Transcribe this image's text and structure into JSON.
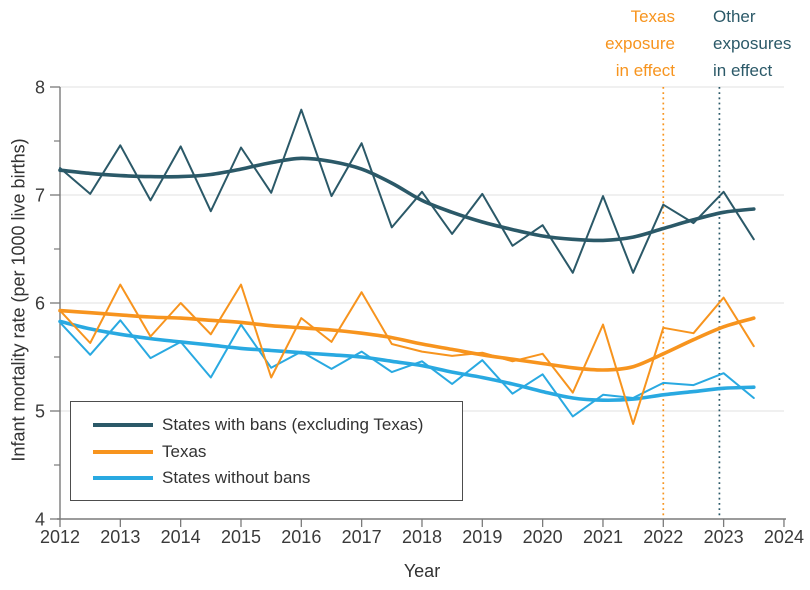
{
  "colors": {
    "grid": "#E6E6E6",
    "axis": "#7A7A7A",
    "text": "#3A3A3A",
    "legend_border": "#4D4D4D"
  },
  "chart_data": {
    "type": "line",
    "title": "",
    "xlabel": "Year",
    "ylabel": "Infant mortality rate (per 1000 live births)",
    "xlim": [
      2012,
      2024
    ],
    "ylim": [
      4,
      8
    ],
    "x_ticks": [
      2012,
      2013,
      2014,
      2015,
      2016,
      2017,
      2018,
      2019,
      2020,
      2021,
      2022,
      2023,
      2024
    ],
    "y_ticks": [
      4,
      5,
      6,
      7,
      8
    ],
    "y_minor_ticks": [
      4.5,
      5.5,
      6.5,
      7.5
    ],
    "gridlines": [
      5,
      6,
      7,
      8
    ],
    "legend_position": "lower-left",
    "x": [
      2012,
      2012.5,
      2013,
      2013.5,
      2014,
      2014.5,
      2015,
      2015.5,
      2016,
      2016.5,
      2017,
      2017.5,
      2018,
      2018.5,
      2019,
      2019.5,
      2020,
      2020.5,
      2021,
      2021.5,
      2022,
      2022.5,
      2023,
      2023.5
    ],
    "series": [
      {
        "key": "states-with-bans",
        "name": "States with bans (excluding Texas)",
        "color": "#2B5968",
        "raw": [
          7.25,
          7.01,
          7.46,
          6.95,
          7.45,
          6.85,
          7.44,
          7.02,
          7.79,
          6.99,
          7.48,
          6.7,
          7.03,
          6.64,
          7.01,
          6.53,
          6.72,
          6.28,
          6.99,
          6.28,
          6.91,
          6.74,
          7.03,
          6.59
        ],
        "trend": [
          7.23,
          7.2,
          7.18,
          7.17,
          7.17,
          7.19,
          7.24,
          7.3,
          7.34,
          7.31,
          7.24,
          7.11,
          6.95,
          6.84,
          6.75,
          6.68,
          6.62,
          6.59,
          6.58,
          6.61,
          6.69,
          6.77,
          6.84,
          6.87
        ]
      },
      {
        "key": "states-without-bans",
        "name": "States without bans",
        "color": "#29A9E1",
        "raw": [
          5.82,
          5.52,
          5.84,
          5.49,
          5.64,
          5.31,
          5.8,
          5.4,
          5.55,
          5.39,
          5.55,
          5.36,
          5.46,
          5.25,
          5.47,
          5.16,
          5.34,
          4.95,
          5.15,
          5.12,
          5.26,
          5.24,
          5.35,
          5.12
        ],
        "trend": [
          5.83,
          5.76,
          5.71,
          5.67,
          5.64,
          5.61,
          5.58,
          5.56,
          5.54,
          5.52,
          5.5,
          5.46,
          5.42,
          5.36,
          5.31,
          5.25,
          5.18,
          5.12,
          5.1,
          5.11,
          5.15,
          5.18,
          5.21,
          5.22
        ]
      },
      {
        "key": "texas",
        "name": "Texas",
        "color": "#F7941E",
        "raw": [
          5.93,
          5.63,
          6.17,
          5.69,
          6.0,
          5.71,
          6.17,
          5.31,
          5.86,
          5.64,
          6.1,
          5.62,
          5.55,
          5.51,
          5.54,
          5.46,
          5.53,
          5.17,
          5.8,
          4.88,
          5.77,
          5.72,
          6.05,
          5.6
        ],
        "trend": [
          5.93,
          5.91,
          5.89,
          5.87,
          5.86,
          5.84,
          5.82,
          5.79,
          5.77,
          5.75,
          5.72,
          5.68,
          5.62,
          5.57,
          5.52,
          5.48,
          5.44,
          5.4,
          5.38,
          5.41,
          5.53,
          5.66,
          5.78,
          5.86
        ]
      }
    ],
    "legend_order": [
      0,
      2,
      1
    ],
    "reference_lines": [
      {
        "name": "texas-exposure-line",
        "label": "Texas\nexposure\nin effect",
        "year": 2022.0,
        "color": "#F7941E"
      },
      {
        "name": "other-exposures-line",
        "label": "Other\nexposures\nin effect",
        "year": 2022.93,
        "color": "#2B5968"
      }
    ]
  }
}
